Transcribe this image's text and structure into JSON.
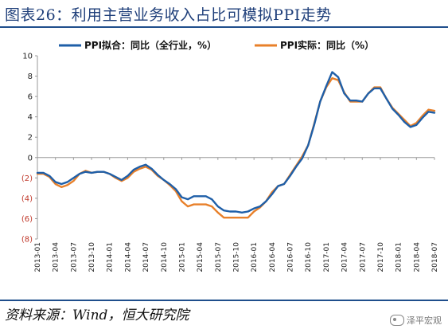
{
  "header": {
    "title": "图表26：利用主营业务收入占比可模拟PPI走势"
  },
  "footer": {
    "source": "资料来源：Wind，恒大研究院",
    "watermark": "泽平宏观"
  },
  "chart_data": {
    "type": "line",
    "title": "图表26：利用主营业务收入占比可模拟PPI走势",
    "xlabel": "",
    "ylabel": "",
    "ylim": [
      -8,
      10
    ],
    "y_ticks": [
      10,
      8,
      6,
      4,
      2,
      0,
      -2,
      -4,
      -6,
      -8
    ],
    "y_tick_labels": [
      "10",
      "8",
      "6",
      "4",
      "2",
      "0",
      "(2)",
      "(4)",
      "(6)",
      "(8)"
    ],
    "x_tick_labels": [
      "2013-01",
      "2013-04",
      "2013-07",
      "2013-10",
      "2014-01",
      "2014-04",
      "2014-07",
      "2014-10",
      "2015-01",
      "2015-04",
      "2015-07",
      "2015-10",
      "2016-01",
      "2016-04",
      "2016-07",
      "2016-10",
      "2017-01",
      "2017-04",
      "2017-07",
      "2017-10",
      "2018-01",
      "2018-04",
      "2018-07"
    ],
    "x": [
      "2013-01",
      "2013-02",
      "2013-03",
      "2013-04",
      "2013-05",
      "2013-06",
      "2013-07",
      "2013-08",
      "2013-09",
      "2013-10",
      "2013-11",
      "2013-12",
      "2014-01",
      "2014-02",
      "2014-03",
      "2014-04",
      "2014-05",
      "2014-06",
      "2014-07",
      "2014-08",
      "2014-09",
      "2014-10",
      "2014-11",
      "2014-12",
      "2015-01",
      "2015-02",
      "2015-03",
      "2015-04",
      "2015-05",
      "2015-06",
      "2015-07",
      "2015-08",
      "2015-09",
      "2015-10",
      "2015-11",
      "2015-12",
      "2016-01",
      "2016-02",
      "2016-03",
      "2016-04",
      "2016-05",
      "2016-06",
      "2016-07",
      "2016-08",
      "2016-09",
      "2016-10",
      "2016-11",
      "2016-12",
      "2017-01",
      "2017-02",
      "2017-03",
      "2017-04",
      "2017-05",
      "2017-06",
      "2017-07",
      "2017-08",
      "2017-09",
      "2017-10",
      "2017-11",
      "2017-12",
      "2018-01",
      "2018-02",
      "2018-03",
      "2018-04",
      "2018-05",
      "2018-06",
      "2018-07"
    ],
    "series": [
      {
        "name": "PPI拟合：同比（全行业，%）",
        "color": "#1f5fa8",
        "values": [
          -1.5,
          -1.5,
          -1.8,
          -2.4,
          -2.6,
          -2.4,
          -2.0,
          -1.6,
          -1.4,
          -1.5,
          -1.4,
          -1.4,
          -1.6,
          -1.9,
          -2.2,
          -1.8,
          -1.2,
          -0.9,
          -0.7,
          -1.1,
          -1.7,
          -2.2,
          -2.6,
          -3.1,
          -3.9,
          -4.1,
          -3.8,
          -3.8,
          -3.8,
          -4.1,
          -4.8,
          -5.2,
          -5.3,
          -5.3,
          -5.4,
          -5.3,
          -5.0,
          -4.8,
          -4.3,
          -3.6,
          -2.8,
          -2.6,
          -1.8,
          -0.9,
          -0.1,
          1.2,
          3.2,
          5.5,
          7.0,
          8.4,
          7.9,
          6.3,
          5.6,
          5.6,
          5.5,
          6.3,
          6.8,
          6.8,
          5.8,
          4.8,
          4.2,
          3.5,
          3.0,
          3.2,
          3.9,
          4.5,
          4.4
        ]
      },
      {
        "name": "PPI实际：同比（%）",
        "color": "#e8802a",
        "values": [
          -1.6,
          -1.6,
          -1.9,
          -2.6,
          -2.9,
          -2.7,
          -2.3,
          -1.6,
          -1.3,
          -1.5,
          -1.4,
          -1.4,
          -1.6,
          -2.0,
          -2.3,
          -2.0,
          -1.4,
          -1.1,
          -0.9,
          -1.2,
          -1.8,
          -2.2,
          -2.7,
          -3.3,
          -4.3,
          -4.8,
          -4.6,
          -4.6,
          -4.6,
          -4.8,
          -5.4,
          -5.9,
          -5.9,
          -5.9,
          -5.9,
          -5.9,
          -5.3,
          -4.9,
          -4.3,
          -3.4,
          -2.8,
          -2.6,
          -1.7,
          -0.8,
          0.1,
          1.2,
          3.3,
          5.5,
          6.9,
          7.8,
          7.6,
          6.4,
          5.5,
          5.5,
          5.5,
          6.3,
          6.9,
          6.9,
          5.8,
          4.9,
          4.3,
          3.7,
          3.1,
          3.4,
          4.1,
          4.7,
          4.6
        ]
      }
    ],
    "grid": false,
    "legend_position": "top"
  }
}
